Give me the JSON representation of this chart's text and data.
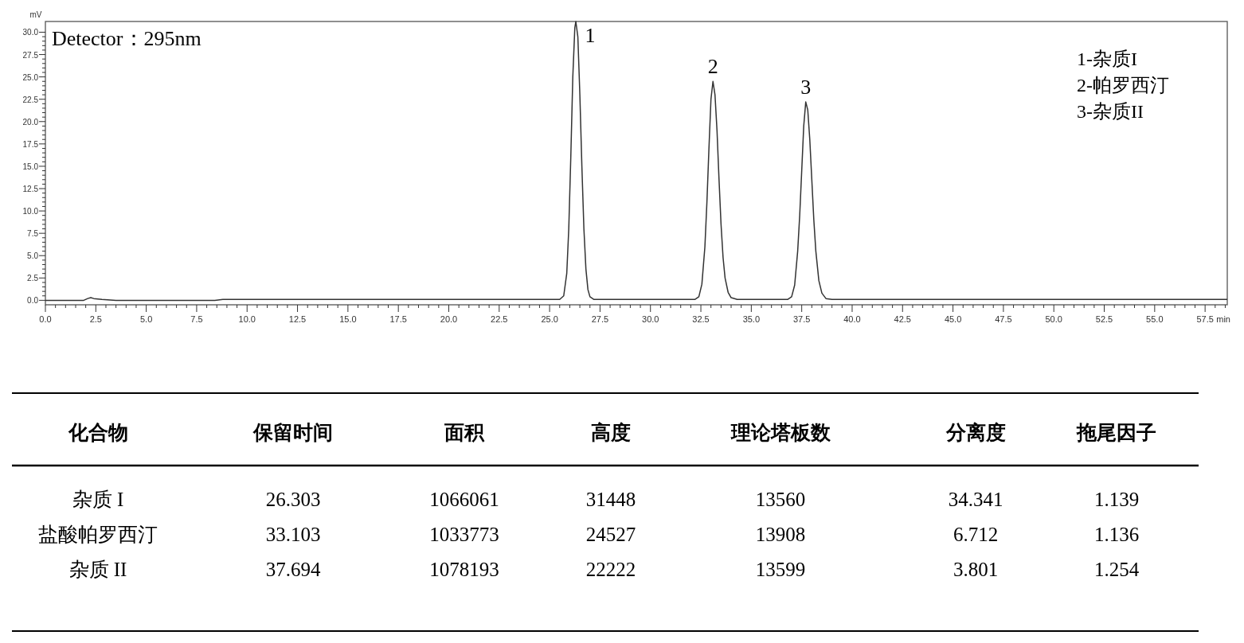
{
  "chart_data": [
    {
      "type": "line",
      "xlabel": "min",
      "ylabel": "mV",
      "color": "#333333",
      "grid": false,
      "marker": "none",
      "line_style": "solid",
      "x": [
        0,
        1.9,
        2.1,
        2.25,
        2.4,
        2.8,
        3.5,
        8.4,
        8.8,
        25.5,
        25.7,
        25.85,
        25.95,
        26.05,
        26.15,
        26.25,
        26.3,
        26.4,
        26.5,
        26.6,
        26.7,
        26.8,
        26.9,
        27.0,
        27.2,
        29.5,
        32.2,
        32.4,
        32.55,
        32.7,
        32.8,
        32.9,
        33.0,
        33.1,
        33.2,
        33.3,
        33.4,
        33.5,
        33.6,
        33.7,
        33.85,
        34.0,
        34.3,
        36.8,
        37.0,
        37.15,
        37.3,
        37.4,
        37.5,
        37.6,
        37.7,
        37.8,
        37.9,
        38.0,
        38.1,
        38.2,
        38.35,
        38.5,
        38.7,
        39.0,
        45,
        58.6
      ],
      "values": [
        0,
        0,
        0.2,
        0.3,
        0.2,
        0.1,
        0,
        0,
        0.1,
        0.1,
        0.5,
        3,
        8,
        16,
        25,
        30.5,
        31.2,
        29.5,
        23,
        15,
        8,
        3.5,
        1.2,
        0.4,
        0.1,
        0.1,
        0.1,
        0.4,
        1.8,
        6,
        11,
        17,
        22.5,
        24.5,
        23,
        19,
        13.5,
        8.5,
        4.8,
        2.5,
        0.9,
        0.3,
        0.1,
        0.1,
        0.4,
        1.7,
        5.5,
        9.5,
        14.5,
        19.5,
        22.2,
        21.3,
        18,
        13.5,
        9,
        5.5,
        2.2,
        0.8,
        0.2,
        0.1,
        0.1,
        0.1
      ],
      "xlim": [
        0,
        58.6
      ],
      "ylim": [
        -0.5,
        31.2
      ],
      "xticks": [
        {
          "value": 0,
          "label": "0.0"
        },
        {
          "value": 2.5,
          "label": "2.5"
        },
        {
          "value": 5,
          "label": "5.0"
        },
        {
          "value": 7.5,
          "label": "7.5"
        },
        {
          "value": 10,
          "label": "10.0"
        },
        {
          "value": 12.5,
          "label": "12.5"
        },
        {
          "value": 15,
          "label": "15.0"
        },
        {
          "value": 17.5,
          "label": "17.5"
        },
        {
          "value": 20,
          "label": "20.0"
        },
        {
          "value": 22.5,
          "label": "22.5"
        },
        {
          "value": 25,
          "label": "25.0"
        },
        {
          "value": 27.5,
          "label": "27.5"
        },
        {
          "value": 30,
          "label": "30.0"
        },
        {
          "value": 32.5,
          "label": "32.5"
        },
        {
          "value": 35,
          "label": "35.0"
        },
        {
          "value": 37.5,
          "label": "37.5"
        },
        {
          "value": 40,
          "label": "40.0"
        },
        {
          "value": 42.5,
          "label": "42.5"
        },
        {
          "value": 45,
          "label": "45.0"
        },
        {
          "value": 47.5,
          "label": "47.5"
        },
        {
          "value": 50,
          "label": "50.0"
        },
        {
          "value": 52.5,
          "label": "52.5"
        },
        {
          "value": 55,
          "label": "55.0"
        },
        {
          "value": 57.5,
          "label": "57.5"
        }
      ],
      "yticks": [
        {
          "value": 0,
          "label": "0.0"
        },
        {
          "value": 2.5,
          "label": "2.5"
        },
        {
          "value": 5,
          "label": "5.0"
        },
        {
          "value": 7.5,
          "label": "7.5"
        },
        {
          "value": 10,
          "label": "10.0"
        },
        {
          "value": 12.5,
          "label": "12.5"
        },
        {
          "value": 15,
          "label": "15.0"
        },
        {
          "value": 17.5,
          "label": "17.5"
        },
        {
          "value": 20,
          "label": "20.0"
        },
        {
          "value": 22.5,
          "label": "22.5"
        },
        {
          "value": 25,
          "label": "25.0"
        },
        {
          "value": 27.5,
          "label": "27.5"
        },
        {
          "value": 30,
          "label": "30.0"
        }
      ],
      "annotations": [
        "Detector：295nm",
        "1-杂质I",
        "2-帕罗西汀",
        "3-杂质II",
        {
          "text": "1",
          "x": 26.3,
          "y": 31.2
        },
        {
          "text": "2",
          "x": 33.1,
          "y": 24.5
        },
        {
          "text": "3",
          "x": 37.7,
          "y": 22.2
        }
      ]
    },
    {
      "type": "other",
      "categories": [
        "化合物",
        "保留时间",
        "面积",
        "高度",
        "理论塔板数",
        "分离度",
        "拖尾因子"
      ],
      "cell_labels": [
        [
          "杂质 I",
          "26.303",
          "1066061",
          "31448",
          "13560",
          "34.341",
          "1.139"
        ],
        [
          "盐酸帕罗西汀",
          "33.103",
          "1033773",
          "24527",
          "13908",
          "6.712",
          "1.136"
        ],
        [
          "杂质 II",
          "37.694",
          "1078193",
          "22222",
          "13599",
          "3.801",
          "1.254"
        ]
      ]
    }
  ]
}
